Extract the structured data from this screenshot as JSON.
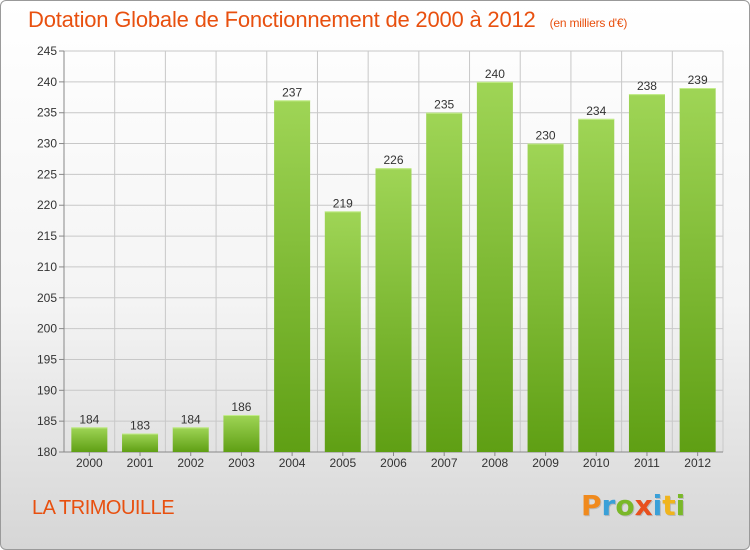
{
  "header": {
    "title": "Dotation Globale de Fonctionnement de 2000 à 2012",
    "unit": "(en milliers d'€)"
  },
  "footer": {
    "place": "LA TRIMOUILLE",
    "brand": "Proxiti",
    "brand_letters": [
      {
        "ch": "P",
        "color": "#f08a1d"
      },
      {
        "ch": "r",
        "color": "#3aa0d8"
      },
      {
        "ch": "o",
        "color": "#7ab829"
      },
      {
        "ch": "x",
        "color": "#e8501e"
      },
      {
        "ch": "i",
        "color": "#3aa0d8"
      },
      {
        "ch": "t",
        "color": "#f0b41d"
      },
      {
        "ch": "i",
        "color": "#7ab829"
      }
    ]
  },
  "colors": {
    "accent": "#e8500f",
    "bar_light": "#9fd556",
    "bar_dark": "#5f9f14",
    "grid": "#c8c8c8"
  },
  "chart_data": {
    "type": "bar",
    "title": "Dotation Globale de Fonctionnement de 2000 à 2012",
    "subtitle": "(en milliers d'€)",
    "xlabel": "",
    "ylabel": "",
    "categories": [
      "2000",
      "2001",
      "2002",
      "2003",
      "2004",
      "2005",
      "2006",
      "2007",
      "2008",
      "2009",
      "2010",
      "2011",
      "2012"
    ],
    "values": [
      184,
      183,
      184,
      186,
      237,
      219,
      226,
      235,
      240,
      230,
      234,
      238,
      239
    ],
    "ylim": [
      180,
      245
    ],
    "yticks": [
      180,
      185,
      190,
      195,
      200,
      205,
      210,
      215,
      220,
      225,
      230,
      235,
      240,
      245
    ],
    "grid": true,
    "data_labels": true,
    "legend": "none"
  }
}
